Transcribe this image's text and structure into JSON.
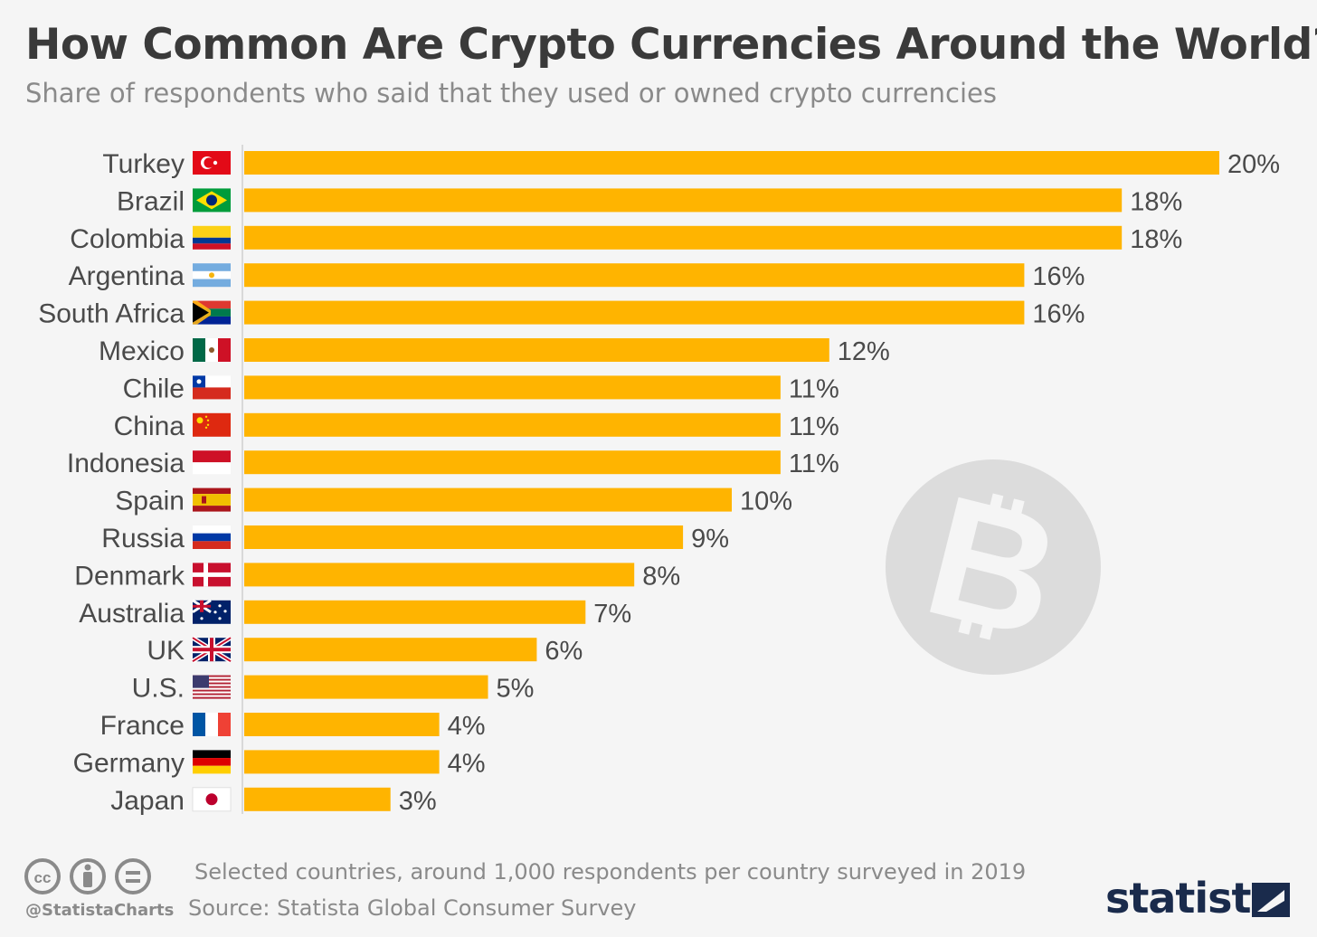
{
  "header": {
    "title": "How Common Are Crypto Currencies Around the World?",
    "subtitle": "Share of respondents who said that they used or owned crypto currencies"
  },
  "chart_data": {
    "type": "bar",
    "orientation": "horizontal",
    "categories": [
      "Turkey",
      "Brazil",
      "Colombia",
      "Argentina",
      "South Africa",
      "Mexico",
      "Chile",
      "China",
      "Indonesia",
      "Spain",
      "Russia",
      "Denmark",
      "Australia",
      "UK",
      "U.S.",
      "France",
      "Germany",
      "Japan"
    ],
    "values": [
      20,
      18,
      18,
      16,
      16,
      12,
      11,
      11,
      11,
      10,
      9,
      8,
      7,
      6,
      5,
      4,
      4,
      3
    ],
    "value_labels": [
      "20%",
      "18%",
      "18%",
      "16%",
      "16%",
      "12%",
      "11%",
      "11%",
      "11%",
      "10%",
      "9%",
      "8%",
      "7%",
      "6%",
      "5%",
      "4%",
      "4%",
      "3%"
    ],
    "unit": "%",
    "xlim": [
      0,
      20
    ],
    "bar_color": "#ffb400",
    "title": "How Common Are Crypto Currencies Around the World?",
    "xlabel": "",
    "ylabel": ""
  },
  "flags": [
    "turkey-flag-icon",
    "brazil-flag-icon",
    "colombia-flag-icon",
    "argentina-flag-icon",
    "south-africa-flag-icon",
    "mexico-flag-icon",
    "chile-flag-icon",
    "china-flag-icon",
    "indonesia-flag-icon",
    "spain-flag-icon",
    "russia-flag-icon",
    "denmark-flag-icon",
    "australia-flag-icon",
    "uk-flag-icon",
    "us-flag-icon",
    "france-flag-icon",
    "germany-flag-icon",
    "japan-flag-icon"
  ],
  "watermark_icon": "bitcoin-icon",
  "footer": {
    "note": "Selected countries, around 1,000 respondents per country surveyed in 2019",
    "source": "Source: Statista Global Consumer Survey",
    "handle": "@StatistaCharts",
    "license_icons": [
      "cc-icon",
      "by-icon",
      "nd-icon"
    ],
    "logo_text": "statista"
  },
  "colors": {
    "bar": "#ffb400",
    "title": "#3a3a3a",
    "muted": "#8a8a8a",
    "background": "#f5f5f5",
    "logo": "#1a2b4c",
    "watermark": "#dcdcdc"
  }
}
